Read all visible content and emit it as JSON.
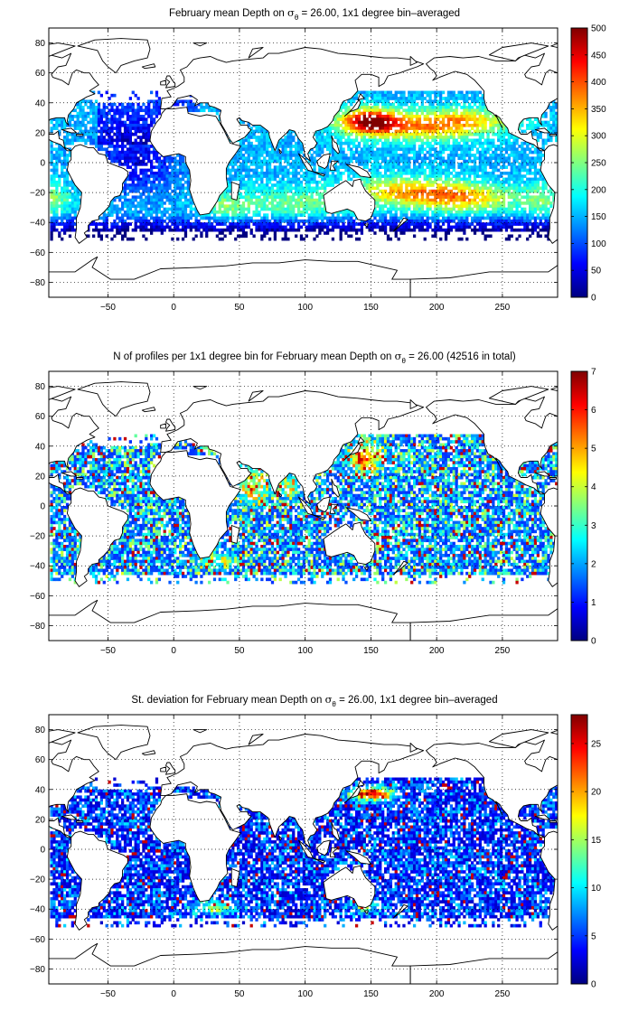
{
  "figure": {
    "panels": [
      {
        "title_pre": "February mean Depth on ",
        "title_sigma": "σ",
        "title_sub": "θ",
        "title_post": " = 26.00, 1x1 degree bin–averaged"
      },
      {
        "title_pre": "N of profiles per 1x1 degree bin for February mean Depth on ",
        "title_sigma": "σ",
        "title_sub": "θ",
        "title_post": " = 26.00 (42516 in total)"
      },
      {
        "title_pre": "St. deviation for February mean Depth on ",
        "title_sigma": "σ",
        "title_sub": "θ",
        "title_post": " = 26.00, 1x1 degree bin–averaged"
      }
    ]
  },
  "chart_data": [
    {
      "type": "heatmap",
      "title": "February mean Depth on σθ = 26.00, 1x1 degree bin–averaged",
      "x_ticks": [
        -50,
        0,
        50,
        100,
        150,
        200,
        250
      ],
      "y_ticks": [
        80,
        60,
        40,
        20,
        0,
        -20,
        -40,
        -60,
        -80
      ],
      "xlim": [
        -95,
        292
      ],
      "ylim": [
        -90,
        90
      ],
      "grid": true,
      "colormap": "jet",
      "colorbar_range": [
        0,
        500
      ],
      "colorbar_ticks": [
        0,
        50,
        100,
        150,
        200,
        250,
        300,
        350,
        400,
        450,
        500
      ],
      "field": "mean_depth"
    },
    {
      "type": "heatmap",
      "title": "N of profiles per 1x1 degree bin for February mean Depth on σθ = 26.00 (42516 in total)",
      "x_ticks": [
        -50,
        0,
        50,
        100,
        150,
        200,
        250
      ],
      "y_ticks": [
        80,
        60,
        40,
        20,
        0,
        -20,
        -40,
        -60,
        -80
      ],
      "xlim": [
        -95,
        292
      ],
      "ylim": [
        -90,
        90
      ],
      "grid": true,
      "colormap": "jet",
      "colorbar_range": [
        0,
        7
      ],
      "colorbar_ticks": [
        0,
        1,
        2,
        3,
        4,
        5,
        6,
        7
      ],
      "total_profiles": 42516,
      "field": "count"
    },
    {
      "type": "heatmap",
      "title": "St. deviation for February mean Depth on σθ = 26.00, 1x1 degree bin–averaged",
      "x_ticks": [
        -50,
        0,
        50,
        100,
        150,
        200,
        250
      ],
      "y_ticks": [
        80,
        60,
        40,
        20,
        0,
        -20,
        -40,
        -60,
        -80
      ],
      "xlim": [
        -95,
        292
      ],
      "ylim": [
        -90,
        90
      ],
      "grid": true,
      "colormap": "jet",
      "colorbar_range": [
        0,
        28
      ],
      "colorbar_ticks": [
        0,
        5,
        10,
        15,
        20,
        25
      ],
      "field": "std_depth"
    }
  ]
}
